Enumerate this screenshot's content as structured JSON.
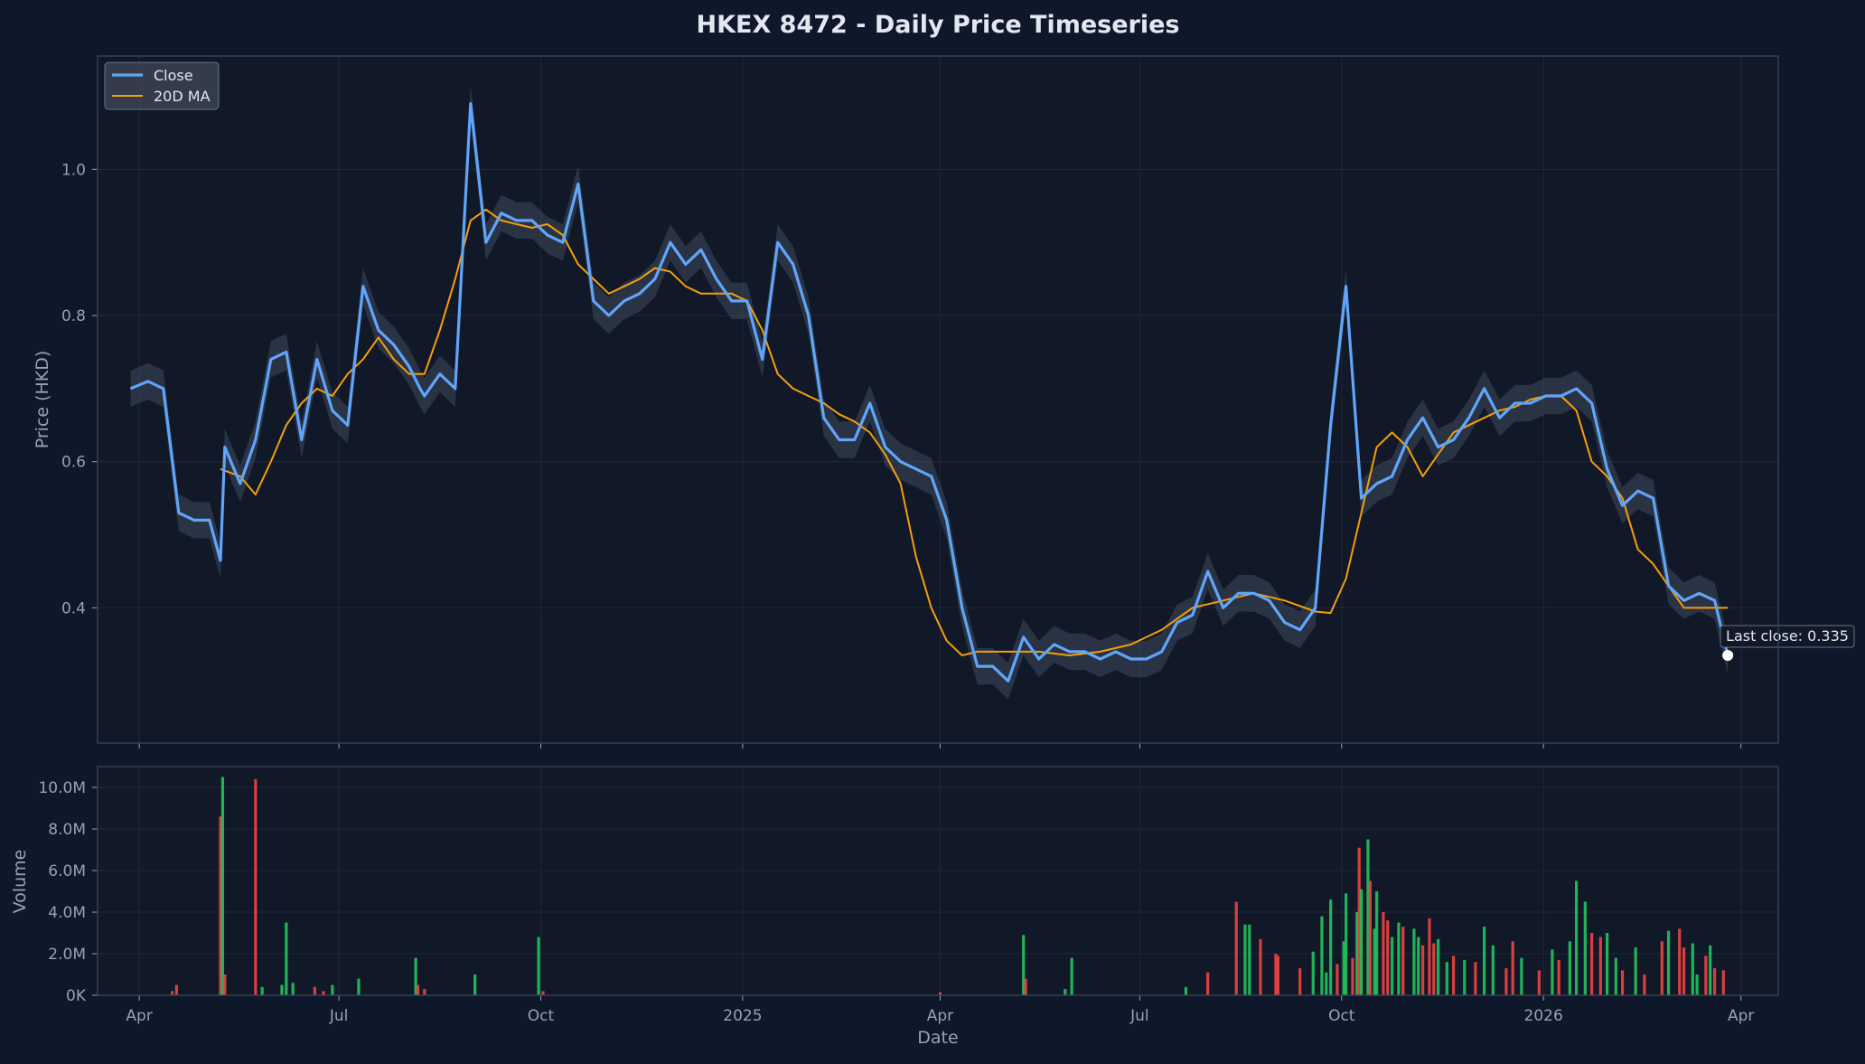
{
  "title": "HKEX 8472 - Daily Price Timeseries",
  "colors": {
    "background": "#0f172a",
    "panel": "#111827",
    "grid": "#1e293b",
    "axis": "#334155",
    "text": "#e2e8f0",
    "tick_text": "#94a3b8",
    "close": "#60a5fa",
    "ma": "#f59e0b",
    "band": "#475569",
    "volume_up": "#22c55e",
    "volume_down": "#ef4444"
  },
  "chart_data": [
    {
      "type": "line",
      "name": "price",
      "ylabel": "Price (HKD)",
      "ylim": [
        0.215,
        1.155
      ],
      "y_ticks": [
        0.4,
        0.6,
        0.8,
        1.0
      ],
      "y_tick_labels": [
        "0.4",
        "0.6",
        "0.8",
        "1.0"
      ],
      "legend": {
        "placement": "top-left",
        "entries": [
          "Close",
          "20D MA"
        ]
      },
      "annotation": "Last close: 0.335",
      "last_close": 0.335,
      "grid": true,
      "series": [
        {
          "name": "Close",
          "x": [
            "2024-03-28",
            "2024-04-05",
            "2024-04-12",
            "2024-04-19",
            "2024-04-26",
            "2024-05-03",
            "2024-05-08",
            "2024-05-10",
            "2024-05-17",
            "2024-05-24",
            "2024-05-31",
            "2024-06-07",
            "2024-06-14",
            "2024-06-21",
            "2024-06-28",
            "2024-07-05",
            "2024-07-12",
            "2024-07-19",
            "2024-07-26",
            "2024-08-02",
            "2024-08-07",
            "2024-08-09",
            "2024-08-16",
            "2024-08-23",
            "2024-08-30",
            "2024-09-06",
            "2024-09-13",
            "2024-09-20",
            "2024-09-27",
            "2024-10-04",
            "2024-10-11",
            "2024-10-18",
            "2024-10-25",
            "2024-11-01",
            "2024-11-08",
            "2024-11-15",
            "2024-11-22",
            "2024-11-29",
            "2024-12-06",
            "2024-12-13",
            "2024-12-20",
            "2024-12-27",
            "2025-01-03",
            "2025-01-10",
            "2025-01-17",
            "2025-01-24",
            "2025-01-31",
            "2025-02-07",
            "2025-02-14",
            "2025-02-21",
            "2025-02-28",
            "2025-03-07",
            "2025-03-14",
            "2025-03-21",
            "2025-03-28",
            "2025-04-04",
            "2025-04-11",
            "2025-04-18",
            "2025-04-25",
            "2025-05-02",
            "2025-05-09",
            "2025-05-16",
            "2025-05-23",
            "2025-05-30",
            "2025-06-06",
            "2025-06-13",
            "2025-06-20",
            "2025-06-27",
            "2025-07-04",
            "2025-07-11",
            "2025-07-18",
            "2025-07-25",
            "2025-08-01",
            "2025-08-08",
            "2025-08-15",
            "2025-08-22",
            "2025-08-29",
            "2025-09-05",
            "2025-09-12",
            "2025-09-19",
            "2025-09-26",
            "2025-10-03",
            "2025-10-10",
            "2025-10-17",
            "2025-10-24",
            "2025-10-31",
            "2025-11-07",
            "2025-11-14",
            "2025-11-21",
            "2025-11-28",
            "2025-12-05",
            "2025-12-12",
            "2025-12-19",
            "2025-12-26",
            "2026-01-02",
            "2026-01-09",
            "2026-01-16",
            "2026-01-23",
            "2026-01-30",
            "2026-02-06",
            "2026-02-13",
            "2026-02-20",
            "2026-02-27",
            "2026-03-06",
            "2026-03-13",
            "2026-03-20",
            "2026-03-26"
          ],
          "y": [
            0.7,
            0.71,
            0.7,
            0.53,
            0.52,
            0.52,
            0.465,
            0.62,
            0.57,
            0.63,
            0.74,
            0.75,
            0.63,
            0.74,
            0.67,
            0.65,
            0.84,
            0.78,
            0.76,
            0.73,
            0.7,
            0.69,
            0.72,
            0.7,
            1.09,
            0.9,
            0.94,
            0.93,
            0.93,
            0.91,
            0.9,
            0.98,
            0.82,
            0.8,
            0.82,
            0.83,
            0.85,
            0.9,
            0.87,
            0.89,
            0.85,
            0.82,
            0.82,
            0.74,
            0.9,
            0.87,
            0.8,
            0.66,
            0.63,
            0.63,
            0.68,
            0.62,
            0.6,
            0.59,
            0.58,
            0.52,
            0.4,
            0.32,
            0.32,
            0.3,
            0.36,
            0.33,
            0.35,
            0.34,
            0.34,
            0.33,
            0.34,
            0.33,
            0.33,
            0.34,
            0.38,
            0.39,
            0.45,
            0.4,
            0.42,
            0.42,
            0.41,
            0.38,
            0.37,
            0.4,
            0.65,
            0.84,
            0.55,
            0.57,
            0.58,
            0.63,
            0.66,
            0.62,
            0.63,
            0.66,
            0.7,
            0.66,
            0.68,
            0.68,
            0.69,
            0.69,
            0.7,
            0.68,
            0.59,
            0.54,
            0.56,
            0.55,
            0.43,
            0.41,
            0.42,
            0.41,
            0.335
          ]
        },
        {
          "name": "20D MA",
          "x": [
            "2024-05-08",
            "2024-05-17",
            "2024-05-24",
            "2024-05-31",
            "2024-06-07",
            "2024-06-14",
            "2024-06-21",
            "2024-06-28",
            "2024-07-05",
            "2024-07-12",
            "2024-07-19",
            "2024-07-26",
            "2024-08-02",
            "2024-08-09",
            "2024-08-16",
            "2024-08-23",
            "2024-08-30",
            "2024-09-06",
            "2024-09-13",
            "2024-09-20",
            "2024-09-27",
            "2024-10-04",
            "2024-10-11",
            "2024-10-18",
            "2024-10-25",
            "2024-11-01",
            "2024-11-08",
            "2024-11-15",
            "2024-11-22",
            "2024-11-29",
            "2024-12-06",
            "2024-12-13",
            "2024-12-20",
            "2024-12-27",
            "2025-01-03",
            "2025-01-10",
            "2025-01-17",
            "2025-01-24",
            "2025-01-31",
            "2025-02-07",
            "2025-02-14",
            "2025-02-21",
            "2025-02-28",
            "2025-03-07",
            "2025-03-14",
            "2025-03-21",
            "2025-03-28",
            "2025-04-04",
            "2025-04-11",
            "2025-04-18",
            "2025-04-25",
            "2025-05-02",
            "2025-05-16",
            "2025-05-30",
            "2025-06-13",
            "2025-06-27",
            "2025-07-11",
            "2025-07-25",
            "2025-08-08",
            "2025-08-22",
            "2025-09-05",
            "2025-09-19",
            "2025-09-26",
            "2025-10-03",
            "2025-10-10",
            "2025-10-17",
            "2025-10-24",
            "2025-10-31",
            "2025-11-07",
            "2025-11-14",
            "2025-11-21",
            "2025-11-28",
            "2025-12-05",
            "2025-12-12",
            "2025-12-19",
            "2025-12-26",
            "2026-01-02",
            "2026-01-09",
            "2026-01-16",
            "2026-01-23",
            "2026-01-30",
            "2026-02-06",
            "2026-02-13",
            "2026-02-20",
            "2026-02-27",
            "2026-03-06",
            "2026-03-13",
            "2026-03-20",
            "2026-03-26"
          ],
          "y": [
            0.59,
            0.58,
            0.555,
            0.6,
            0.65,
            0.68,
            0.7,
            0.69,
            0.72,
            0.74,
            0.77,
            0.74,
            0.72,
            0.72,
            0.78,
            0.85,
            0.93,
            0.945,
            0.93,
            0.925,
            0.92,
            0.925,
            0.91,
            0.87,
            0.85,
            0.83,
            0.84,
            0.85,
            0.865,
            0.86,
            0.84,
            0.83,
            0.83,
            0.83,
            0.82,
            0.78,
            0.72,
            0.7,
            0.69,
            0.68,
            0.665,
            0.655,
            0.64,
            0.61,
            0.57,
            0.47,
            0.4,
            0.355,
            0.335,
            0.34,
            0.34,
            0.34,
            0.34,
            0.335,
            0.34,
            0.35,
            0.37,
            0.4,
            0.41,
            0.42,
            0.41,
            0.395,
            0.393,
            0.44,
            0.53,
            0.62,
            0.64,
            0.62,
            0.58,
            0.61,
            0.64,
            0.65,
            0.66,
            0.67,
            0.675,
            0.685,
            0.69,
            0.69,
            0.67,
            0.6,
            0.58,
            0.55,
            0.48,
            0.46,
            0.43,
            0.4,
            0.4,
            0.4,
            0.4
          ]
        }
      ]
    },
    {
      "type": "bar",
      "name": "volume",
      "xlabel": "Date",
      "ylabel": "Volume",
      "ylim": [
        0,
        11000000
      ],
      "y_ticks": [
        0,
        2000000,
        4000000,
        6000000,
        8000000,
        10000000
      ],
      "y_tick_labels": [
        "0K",
        "2.0M",
        "4.0M",
        "6.0M",
        "8.0M",
        "10.0M"
      ],
      "x_ticks": [
        "2024-04-01",
        "2024-07-01",
        "2024-10-01",
        "2025-01-01",
        "2025-04-01",
        "2025-07-01",
        "2025-10-01",
        "2026-01-01",
        "2026-04-01"
      ],
      "x_tick_labels": [
        "Apr",
        "Jul",
        "Oct",
        "2025",
        "Apr",
        "Jul",
        "Oct",
        "2026",
        "Apr"
      ],
      "grid": true,
      "bars": [
        {
          "x": "2024-04-16",
          "v": 200000,
          "dir": "down"
        },
        {
          "x": "2024-04-18",
          "v": 500000,
          "dir": "down"
        },
        {
          "x": "2024-05-08",
          "v": 8600000,
          "dir": "down"
        },
        {
          "x": "2024-05-09",
          "v": 10500000,
          "dir": "up"
        },
        {
          "x": "2024-05-10",
          "v": 1000000,
          "dir": "down"
        },
        {
          "x": "2024-05-24",
          "v": 10400000,
          "dir": "down"
        },
        {
          "x": "2024-05-27",
          "v": 400000,
          "dir": "up"
        },
        {
          "x": "2024-06-05",
          "v": 500000,
          "dir": "up"
        },
        {
          "x": "2024-06-07",
          "v": 3500000,
          "dir": "up"
        },
        {
          "x": "2024-06-10",
          "v": 600000,
          "dir": "up"
        },
        {
          "x": "2024-06-20",
          "v": 400000,
          "dir": "down"
        },
        {
          "x": "2024-06-24",
          "v": 200000,
          "dir": "down"
        },
        {
          "x": "2024-06-28",
          "v": 500000,
          "dir": "up"
        },
        {
          "x": "2024-07-10",
          "v": 800000,
          "dir": "up"
        },
        {
          "x": "2024-08-05",
          "v": 1800000,
          "dir": "up"
        },
        {
          "x": "2024-08-06",
          "v": 500000,
          "dir": "down"
        },
        {
          "x": "2024-08-09",
          "v": 300000,
          "dir": "down"
        },
        {
          "x": "2024-09-01",
          "v": 1000000,
          "dir": "up"
        },
        {
          "x": "2024-09-30",
          "v": 2800000,
          "dir": "up"
        },
        {
          "x": "2024-10-02",
          "v": 200000,
          "dir": "down"
        },
        {
          "x": "2025-04-01",
          "v": 150000,
          "dir": "down"
        },
        {
          "x": "2025-05-09",
          "v": 2900000,
          "dir": "up"
        },
        {
          "x": "2025-05-10",
          "v": 800000,
          "dir": "down"
        },
        {
          "x": "2025-05-31",
          "v": 1800000,
          "dir": "up"
        },
        {
          "x": "2025-05-28",
          "v": 300000,
          "dir": "up"
        },
        {
          "x": "2025-07-22",
          "v": 400000,
          "dir": "up"
        },
        {
          "x": "2025-08-01",
          "v": 1100000,
          "dir": "down"
        },
        {
          "x": "2025-08-14",
          "v": 4500000,
          "dir": "down"
        },
        {
          "x": "2025-08-18",
          "v": 3400000,
          "dir": "up"
        },
        {
          "x": "2025-08-20",
          "v": 3400000,
          "dir": "up"
        },
        {
          "x": "2025-08-25",
          "v": 2700000,
          "dir": "down"
        },
        {
          "x": "2025-09-01",
          "v": 2000000,
          "dir": "down"
        },
        {
          "x": "2025-09-02",
          "v": 1900000,
          "dir": "down"
        },
        {
          "x": "2025-09-12",
          "v": 1300000,
          "dir": "down"
        },
        {
          "x": "2025-09-18",
          "v": 2100000,
          "dir": "up"
        },
        {
          "x": "2025-09-22",
          "v": 3800000,
          "dir": "up"
        },
        {
          "x": "2025-09-24",
          "v": 1100000,
          "dir": "up"
        },
        {
          "x": "2025-09-26",
          "v": 4600000,
          "dir": "up"
        },
        {
          "x": "2025-09-29",
          "v": 1500000,
          "dir": "down"
        },
        {
          "x": "2025-10-02",
          "v": 2600000,
          "dir": "up"
        },
        {
          "x": "2025-10-03",
          "v": 4900000,
          "dir": "up"
        },
        {
          "x": "2025-10-06",
          "v": 1800000,
          "dir": "down"
        },
        {
          "x": "2025-10-08",
          "v": 4000000,
          "dir": "up"
        },
        {
          "x": "2025-10-09",
          "v": 7100000,
          "dir": "down"
        },
        {
          "x": "2025-10-10",
          "v": 5100000,
          "dir": "up"
        },
        {
          "x": "2025-10-13",
          "v": 7500000,
          "dir": "up"
        },
        {
          "x": "2025-10-14",
          "v": 5500000,
          "dir": "down"
        },
        {
          "x": "2025-10-16",
          "v": 3200000,
          "dir": "up"
        },
        {
          "x": "2025-10-17",
          "v": 5000000,
          "dir": "up"
        },
        {
          "x": "2025-10-20",
          "v": 4000000,
          "dir": "down"
        },
        {
          "x": "2025-10-22",
          "v": 3600000,
          "dir": "down"
        },
        {
          "x": "2025-10-24",
          "v": 2800000,
          "dir": "up"
        },
        {
          "x": "2025-10-27",
          "v": 3500000,
          "dir": "up"
        },
        {
          "x": "2025-10-29",
          "v": 3300000,
          "dir": "down"
        },
        {
          "x": "2025-11-03",
          "v": 3200000,
          "dir": "up"
        },
        {
          "x": "2025-11-05",
          "v": 2800000,
          "dir": "up"
        },
        {
          "x": "2025-11-07",
          "v": 2400000,
          "dir": "down"
        },
        {
          "x": "2025-11-10",
          "v": 3700000,
          "dir": "down"
        },
        {
          "x": "2025-11-12",
          "v": 2500000,
          "dir": "down"
        },
        {
          "x": "2025-11-14",
          "v": 2700000,
          "dir": "up"
        },
        {
          "x": "2025-11-18",
          "v": 1600000,
          "dir": "up"
        },
        {
          "x": "2025-11-21",
          "v": 1900000,
          "dir": "down"
        },
        {
          "x": "2025-11-26",
          "v": 1700000,
          "dir": "up"
        },
        {
          "x": "2025-12-01",
          "v": 1600000,
          "dir": "down"
        },
        {
          "x": "2025-12-05",
          "v": 3300000,
          "dir": "up"
        },
        {
          "x": "2025-12-09",
          "v": 2400000,
          "dir": "up"
        },
        {
          "x": "2025-12-15",
          "v": 1300000,
          "dir": "down"
        },
        {
          "x": "2025-12-18",
          "v": 2600000,
          "dir": "down"
        },
        {
          "x": "2025-12-22",
          "v": 1800000,
          "dir": "up"
        },
        {
          "x": "2025-12-30",
          "v": 1200000,
          "dir": "down"
        },
        {
          "x": "2026-01-05",
          "v": 2200000,
          "dir": "up"
        },
        {
          "x": "2026-01-08",
          "v": 1700000,
          "dir": "down"
        },
        {
          "x": "2026-01-13",
          "v": 2600000,
          "dir": "up"
        },
        {
          "x": "2026-01-16",
          "v": 5500000,
          "dir": "up"
        },
        {
          "x": "2026-01-20",
          "v": 4500000,
          "dir": "up"
        },
        {
          "x": "2026-01-23",
          "v": 3000000,
          "dir": "down"
        },
        {
          "x": "2026-01-27",
          "v": 2800000,
          "dir": "down"
        },
        {
          "x": "2026-01-30",
          "v": 3000000,
          "dir": "up"
        },
        {
          "x": "2026-02-03",
          "v": 1800000,
          "dir": "up"
        },
        {
          "x": "2026-02-06",
          "v": 1200000,
          "dir": "down"
        },
        {
          "x": "2026-02-12",
          "v": 2300000,
          "dir": "up"
        },
        {
          "x": "2026-02-16",
          "v": 1000000,
          "dir": "down"
        },
        {
          "x": "2026-02-24",
          "v": 2600000,
          "dir": "down"
        },
        {
          "x": "2026-02-27",
          "v": 3100000,
          "dir": "up"
        },
        {
          "x": "2026-03-04",
          "v": 3200000,
          "dir": "down"
        },
        {
          "x": "2026-03-06",
          "v": 2300000,
          "dir": "down"
        },
        {
          "x": "2026-03-10",
          "v": 2500000,
          "dir": "up"
        },
        {
          "x": "2026-03-12",
          "v": 1000000,
          "dir": "up"
        },
        {
          "x": "2026-03-16",
          "v": 1900000,
          "dir": "down"
        },
        {
          "x": "2026-03-18",
          "v": 2400000,
          "dir": "up"
        },
        {
          "x": "2026-03-20",
          "v": 1300000,
          "dir": "down"
        },
        {
          "x": "2026-03-24",
          "v": 1200000,
          "dir": "down"
        }
      ]
    }
  ]
}
